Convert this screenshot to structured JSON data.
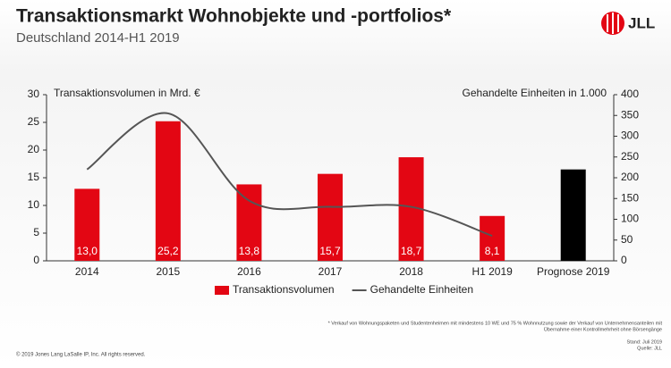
{
  "chart_data": {
    "type": "bar-line",
    "title": "Transaktionsmarkt Wohnobjekte und -portfolios*",
    "subtitle": "Deutschland 2014-H1 2019",
    "logo": "JLL",
    "ylabel": "Transaktionsvolumen in Mrd. €",
    "y2label": "Gehandelte Einheiten in 1.000",
    "categories": [
      "2014",
      "2015",
      "2016",
      "2017",
      "2018",
      "H1 2019",
      "Prognose 2019"
    ],
    "series": [
      {
        "name": "Transaktionsvolumen",
        "type": "bar",
        "color": "#e30613",
        "colors": [
          "#e30613",
          "#e30613",
          "#e30613",
          "#e30613",
          "#e30613",
          "#e30613",
          "#000000"
        ],
        "values": [
          13.0,
          25.2,
          13.8,
          15.7,
          18.7,
          8.1,
          16.5
        ],
        "value_labels": [
          "13,0",
          "25,2",
          "13,8",
          "15,7",
          "18,7",
          "8,1",
          null
        ]
      },
      {
        "name": "Gehandelte Einheiten",
        "type": "line",
        "color": "#555555",
        "axis": "y2",
        "values": [
          220,
          355,
          145,
          130,
          130,
          60,
          null
        ]
      }
    ],
    "ylim": [
      0,
      30
    ],
    "yticks": [
      0,
      5,
      10,
      15,
      20,
      25,
      30
    ],
    "y2lim": [
      0,
      400
    ],
    "y2ticks": [
      0,
      50,
      100,
      150,
      200,
      250,
      300,
      350,
      400
    ],
    "grid": false,
    "footnote": [
      "* Verkauf von Wohnungspaketen und Studentenheimen mit mindestens 10 WE und 75 % Wohnnutzung sowie der Verkauf von Unternehmensanteilen mit",
      "Übernahme einer Kontrollmehrheit ohne Börsengänge"
    ],
    "source": [
      "Stand: Juli 2019",
      "Quelle: JLL"
    ],
    "copyright": "© 2019 Jones Lang LaSalle IP, Inc. All rights reserved."
  }
}
